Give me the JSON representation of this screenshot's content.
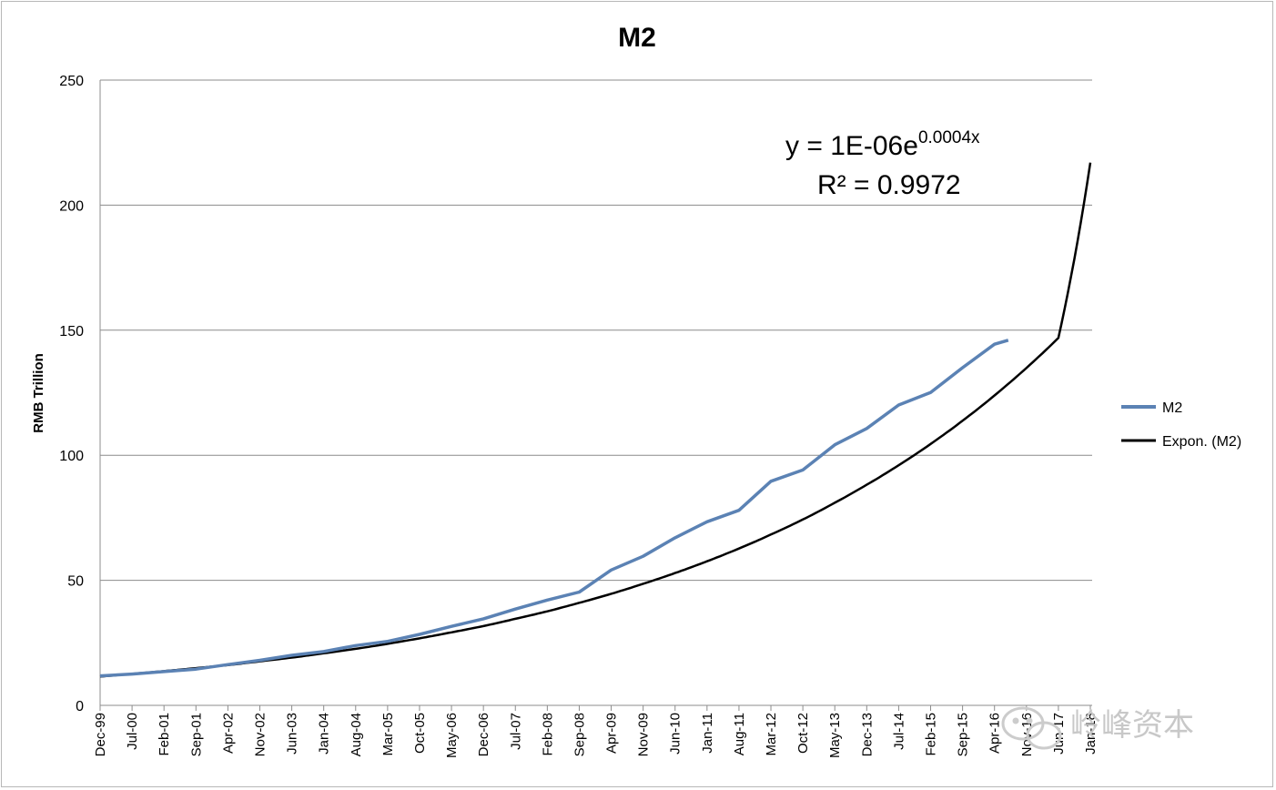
{
  "chart_data": {
    "type": "line",
    "title": "M2",
    "ylabel": "RMB Trillion",
    "xlabel": "",
    "ylim": [
      0,
      250
    ],
    "yticks": [
      "0",
      "50",
      "100",
      "150",
      "200",
      "250"
    ],
    "ytick_values": [
      0,
      50,
      100,
      150,
      200,
      250
    ],
    "grid": "horizontal",
    "legend_placement": "right",
    "x_tick_labels": [
      "Dec-99",
      "Jul-00",
      "Feb-01",
      "Sep-01",
      "Apr-02",
      "Nov-02",
      "Jun-03",
      "Jan-04",
      "Aug-04",
      "Mar-05",
      "Oct-05",
      "May-06",
      "Dec-06",
      "Jul-07",
      "Feb-08",
      "Sep-08",
      "Apr-09",
      "Nov-09",
      "Jun-10",
      "Jan-11",
      "Aug-11",
      "Mar-12",
      "Oct-12",
      "May-13",
      "Dec-13",
      "Jul-14",
      "Feb-15",
      "Sep-15",
      "Apr-16",
      "Nov-16",
      "Jun-17",
      "Jan-18"
    ],
    "series": [
      {
        "name": "M2",
        "color": "#5b82b4",
        "x": [
          "Dec-99",
          "Jul-00",
          "Feb-01",
          "Sep-01",
          "Apr-02",
          "Nov-02",
          "Jun-03",
          "Jan-04",
          "Aug-04",
          "Mar-05",
          "Oct-05",
          "May-06",
          "Dec-06",
          "Jul-07",
          "Feb-08",
          "Sep-08",
          "Apr-09",
          "Nov-09",
          "Jun-10",
          "Jan-11",
          "Aug-11",
          "Mar-12",
          "Oct-12",
          "May-13",
          "Dec-13",
          "Jul-14",
          "Feb-15",
          "Sep-15",
          "Apr-16",
          "Jul-16"
        ],
        "values": [
          11.8,
          12.5,
          13.5,
          14.5,
          16.3,
          18.0,
          20.0,
          21.5,
          23.9,
          25.6,
          28.4,
          31.6,
          34.6,
          38.5,
          42.1,
          45.3,
          54.1,
          59.6,
          67.0,
          73.4,
          78.0,
          89.6,
          94.1,
          104.2,
          110.7,
          120.1,
          125.1,
          135.0,
          144.4,
          146.0
        ]
      },
      {
        "name": "Expon. (M2)",
        "color": "#000000",
        "type": "exponential_trendline"
      }
    ],
    "trendline": {
      "equation_main": "y = 1E-06e",
      "equation_exponent": "0.0004x",
      "r_squared": "R² = 0.9972",
      "values_at_x_ticks": [
        11.5,
        12.6,
        13.7,
        14.9,
        16.1,
        17.6,
        19.1,
        20.8,
        22.6,
        24.6,
        26.8,
        29.2,
        31.7,
        34.6,
        37.6,
        41.0,
        44.6,
        48.6,
        52.9,
        57.6,
        62.7,
        68.3,
        74.3,
        81.0,
        88.2,
        96.0,
        104.5,
        113.8,
        123.9,
        134.9,
        146.9,
        217.0
      ]
    }
  },
  "legend": {
    "items": [
      {
        "label": "M2",
        "color": "#5b82b4"
      },
      {
        "label": "Expon. (M2)",
        "color": "#000000"
      }
    ]
  },
  "watermark": {
    "text": "岭峰资本",
    "icon": "wechat-bubbles-icon"
  }
}
